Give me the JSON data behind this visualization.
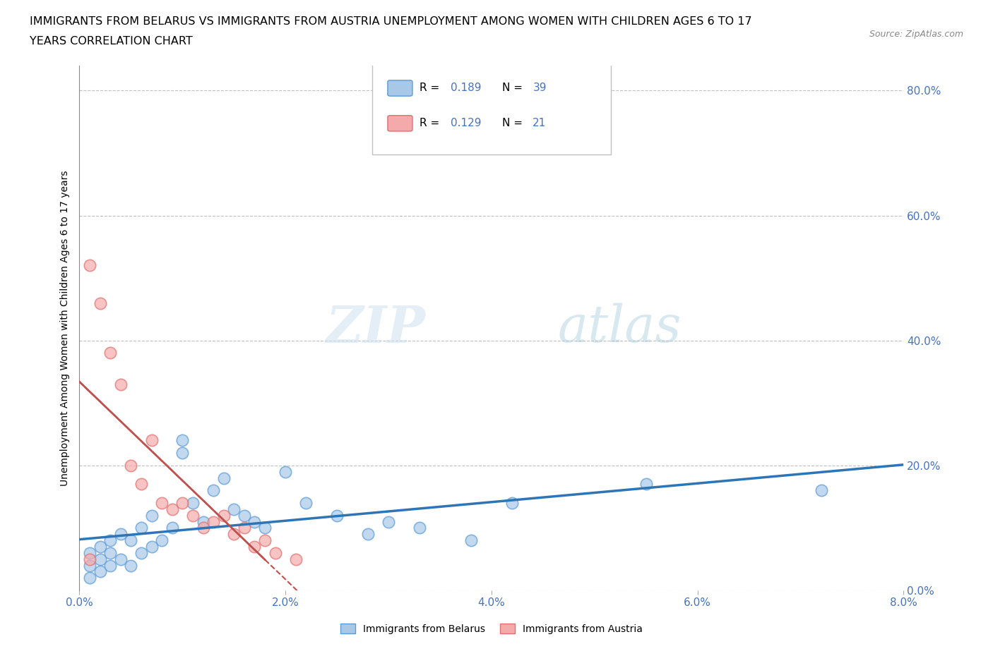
{
  "title_line1": "IMMIGRANTS FROM BELARUS VS IMMIGRANTS FROM AUSTRIA UNEMPLOYMENT AMONG WOMEN WITH CHILDREN AGES 6 TO 17",
  "title_line2": "YEARS CORRELATION CHART",
  "source": "Source: ZipAtlas.com",
  "xlabel_ticks": [
    "0.0%",
    "2.0%",
    "4.0%",
    "6.0%",
    "8.0%"
  ],
  "xlabel_values": [
    0.0,
    0.02,
    0.04,
    0.06,
    0.08
  ],
  "ylabel_ticks": [
    "0.0%",
    "20.0%",
    "40.0%",
    "60.0%",
    "80.0%"
  ],
  "ylabel_values": [
    0.0,
    0.2,
    0.4,
    0.6,
    0.8
  ],
  "xlim": [
    0.0,
    0.08
  ],
  "ylim": [
    0.0,
    0.84
  ],
  "belarus_R": 0.189,
  "belarus_N": 39,
  "austria_R": 0.129,
  "austria_N": 21,
  "belarus_color": "#a8c8e8",
  "austria_color": "#f4aaaa",
  "belarus_edge_color": "#5b9bd5",
  "austria_edge_color": "#e07070",
  "belarus_line_color": "#2e75b6",
  "austria_line_color": "#c0504d",
  "ylabel": "Unemployment Among Women with Children Ages 6 to 17 years",
  "legend_belarus": "Immigrants from Belarus",
  "legend_austria": "Immigrants from Austria",
  "belarus_x": [
    0.001,
    0.001,
    0.001,
    0.002,
    0.002,
    0.002,
    0.003,
    0.003,
    0.003,
    0.004,
    0.004,
    0.005,
    0.005,
    0.006,
    0.006,
    0.007,
    0.007,
    0.008,
    0.009,
    0.01,
    0.01,
    0.011,
    0.012,
    0.013,
    0.014,
    0.015,
    0.016,
    0.017,
    0.018,
    0.02,
    0.022,
    0.025,
    0.028,
    0.03,
    0.033,
    0.038,
    0.042,
    0.055,
    0.072
  ],
  "belarus_y": [
    0.02,
    0.04,
    0.06,
    0.03,
    0.05,
    0.07,
    0.04,
    0.06,
    0.08,
    0.05,
    0.09,
    0.04,
    0.08,
    0.06,
    0.1,
    0.07,
    0.12,
    0.08,
    0.1,
    0.24,
    0.22,
    0.14,
    0.11,
    0.16,
    0.18,
    0.13,
    0.12,
    0.11,
    0.1,
    0.19,
    0.14,
    0.12,
    0.09,
    0.11,
    0.1,
    0.08,
    0.14,
    0.17,
    0.16
  ],
  "austria_x": [
    0.001,
    0.001,
    0.002,
    0.003,
    0.004,
    0.005,
    0.006,
    0.007,
    0.008,
    0.009,
    0.01,
    0.011,
    0.012,
    0.013,
    0.014,
    0.015,
    0.016,
    0.017,
    0.018,
    0.019,
    0.021
  ],
  "austria_y": [
    0.05,
    0.52,
    0.46,
    0.38,
    0.33,
    0.2,
    0.17,
    0.24,
    0.14,
    0.13,
    0.14,
    0.12,
    0.1,
    0.11,
    0.12,
    0.09,
    0.1,
    0.07,
    0.08,
    0.06,
    0.05
  ]
}
